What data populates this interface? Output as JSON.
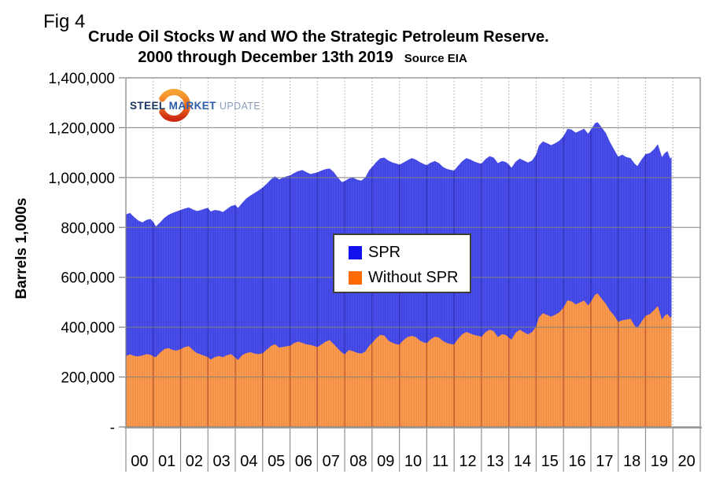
{
  "header": {
    "fig_label": "Fig 4",
    "title_line1": "Crude Oil Stocks W and WO the Strategic Petroleum Reserve.",
    "title_line2": "2000 through December 13th 2019",
    "source": "Source EIA"
  },
  "logo": {
    "word1": "STEEL",
    "word2": "MARKET",
    "word3": "UPDATE"
  },
  "chart_data": {
    "type": "area",
    "subtype": "stacked-weekly-bars",
    "title": "Crude Oil Stocks W and WO the Strategic Petroleum Reserve. 2000 through December 13th 2019",
    "source": "Source EIA",
    "ylabel": "Barrels 1,000s",
    "ylim": [
      0,
      1400000
    ],
    "y_ticks": [
      "1,400,000",
      "1,200,000",
      "1,000,000",
      "800,000",
      "600,000",
      "400,000",
      "200,000",
      "-"
    ],
    "x_ticks": [
      "00",
      "01",
      "02",
      "03",
      "04",
      "05",
      "06",
      "07",
      "08",
      "09",
      "10",
      "11",
      "12",
      "13",
      "14",
      "15",
      "16",
      "17",
      "18",
      "19",
      "20"
    ],
    "x_axis_years": [
      2000,
      2021
    ],
    "data_end_year": 2019.95,
    "grid": {
      "horizontal": "solid",
      "vertical": "dotted-yearly"
    },
    "legend_position": "center",
    "series": [
      {
        "name": "SPR",
        "legend_color": "#1212ee",
        "area_color": "#4e52ee",
        "area_stripe": "#3a3ed8",
        "meaning": "total stocks with SPR (top of blue)"
      },
      {
        "name": "Without SPR",
        "legend_color": "#ff6a05",
        "area_color": "#f9a25c",
        "area_stripe": "#ef8130",
        "meaning": "stocks excluding SPR (orange)"
      }
    ],
    "points_format": [
      "year",
      "total_with_spr_kbbl",
      "without_spr_kbbl"
    ],
    "points": [
      [
        2000.0,
        852000,
        284000
      ],
      [
        2000.15,
        858000,
        291000
      ],
      [
        2000.3,
        842000,
        285000
      ],
      [
        2000.45,
        828000,
        283000
      ],
      [
        2000.6,
        820000,
        286000
      ],
      [
        2000.75,
        830000,
        292000
      ],
      [
        2000.9,
        834000,
        289000
      ],
      [
        2001.0,
        822000,
        283000
      ],
      [
        2001.1,
        804000,
        280000
      ],
      [
        2001.25,
        820000,
        298000
      ],
      [
        2001.4,
        838000,
        312000
      ],
      [
        2001.55,
        850000,
        316000
      ],
      [
        2001.7,
        858000,
        309000
      ],
      [
        2001.85,
        864000,
        306000
      ],
      [
        2002.0,
        870000,
        312000
      ],
      [
        2002.15,
        876000,
        320000
      ],
      [
        2002.3,
        880000,
        324000
      ],
      [
        2002.45,
        872000,
        308000
      ],
      [
        2002.6,
        866000,
        296000
      ],
      [
        2002.75,
        870000,
        290000
      ],
      [
        2002.9,
        876000,
        284000
      ],
      [
        2003.0,
        878000,
        280000
      ],
      [
        2003.1,
        864000,
        270000
      ],
      [
        2003.25,
        870000,
        280000
      ],
      [
        2003.4,
        868000,
        284000
      ],
      [
        2003.55,
        862000,
        280000
      ],
      [
        2003.7,
        874000,
        288000
      ],
      [
        2003.85,
        886000,
        292000
      ],
      [
        2004.0,
        890000,
        278000
      ],
      [
        2004.1,
        878000,
        268000
      ],
      [
        2004.25,
        898000,
        288000
      ],
      [
        2004.4,
        916000,
        296000
      ],
      [
        2004.55,
        928000,
        300000
      ],
      [
        2004.7,
        938000,
        294000
      ],
      [
        2004.85,
        948000,
        292000
      ],
      [
        2005.0,
        960000,
        295000
      ],
      [
        2005.15,
        975000,
        310000
      ],
      [
        2005.3,
        992000,
        324000
      ],
      [
        2005.45,
        1005000,
        332000
      ],
      [
        2005.6,
        993000,
        318000
      ],
      [
        2005.75,
        1000000,
        321000
      ],
      [
        2005.9,
        1006000,
        324000
      ],
      [
        2006.0,
        1008000,
        325000
      ],
      [
        2006.15,
        1018000,
        336000
      ],
      [
        2006.3,
        1026000,
        342000
      ],
      [
        2006.45,
        1030000,
        337000
      ],
      [
        2006.6,
        1022000,
        331000
      ],
      [
        2006.75,
        1014000,
        329000
      ],
      [
        2006.9,
        1018000,
        324000
      ],
      [
        2007.0,
        1021000,
        320000
      ],
      [
        2007.15,
        1028000,
        330000
      ],
      [
        2007.3,
        1034000,
        342000
      ],
      [
        2007.45,
        1036000,
        348000
      ],
      [
        2007.6,
        1022000,
        332000
      ],
      [
        2007.75,
        1000000,
        314000
      ],
      [
        2007.9,
        982000,
        298000
      ],
      [
        2008.0,
        986000,
        291000
      ],
      [
        2008.15,
        996000,
        308000
      ],
      [
        2008.3,
        1000000,
        304000
      ],
      [
        2008.45,
        992000,
        297000
      ],
      [
        2008.6,
        988000,
        294000
      ],
      [
        2008.75,
        1000000,
        302000
      ],
      [
        2008.9,
        1030000,
        326000
      ],
      [
        2009.0,
        1042000,
        336000
      ],
      [
        2009.15,
        1062000,
        355000
      ],
      [
        2009.3,
        1077000,
        369000
      ],
      [
        2009.45,
        1080000,
        366000
      ],
      [
        2009.6,
        1068000,
        346000
      ],
      [
        2009.75,
        1060000,
        337000
      ],
      [
        2009.9,
        1056000,
        331000
      ],
      [
        2010.0,
        1052000,
        330000
      ],
      [
        2010.15,
        1060000,
        348000
      ],
      [
        2010.3,
        1070000,
        360000
      ],
      [
        2010.45,
        1078000,
        365000
      ],
      [
        2010.6,
        1072000,
        360000
      ],
      [
        2010.75,
        1062000,
        346000
      ],
      [
        2010.9,
        1054000,
        338000
      ],
      [
        2011.0,
        1050000,
        336000
      ],
      [
        2011.15,
        1060000,
        352000
      ],
      [
        2011.3,
        1066000,
        362000
      ],
      [
        2011.45,
        1058000,
        358000
      ],
      [
        2011.6,
        1042000,
        344000
      ],
      [
        2011.75,
        1034000,
        336000
      ],
      [
        2011.9,
        1030000,
        332000
      ],
      [
        2012.0,
        1028000,
        331000
      ],
      [
        2012.15,
        1048000,
        354000
      ],
      [
        2012.3,
        1066000,
        372000
      ],
      [
        2012.45,
        1078000,
        381000
      ],
      [
        2012.6,
        1072000,
        374000
      ],
      [
        2012.75,
        1064000,
        368000
      ],
      [
        2012.9,
        1058000,
        365000
      ],
      [
        2013.0,
        1056000,
        361000
      ],
      [
        2013.15,
        1074000,
        380000
      ],
      [
        2013.3,
        1086000,
        390000
      ],
      [
        2013.45,
        1080000,
        384000
      ],
      [
        2013.6,
        1058000,
        360000
      ],
      [
        2013.75,
        1066000,
        372000
      ],
      [
        2013.9,
        1062000,
        368000
      ],
      [
        2014.0,
        1052000,
        358000
      ],
      [
        2014.1,
        1040000,
        350000
      ],
      [
        2014.25,
        1064000,
        378000
      ],
      [
        2014.4,
        1076000,
        390000
      ],
      [
        2014.55,
        1068000,
        380000
      ],
      [
        2014.7,
        1060000,
        371000
      ],
      [
        2014.85,
        1068000,
        380000
      ],
      [
        2015.0,
        1092000,
        403000
      ],
      [
        2015.1,
        1128000,
        440000
      ],
      [
        2015.25,
        1145000,
        456000
      ],
      [
        2015.4,
        1138000,
        449000
      ],
      [
        2015.55,
        1130000,
        442000
      ],
      [
        2015.7,
        1138000,
        450000
      ],
      [
        2015.85,
        1148000,
        460000
      ],
      [
        2016.0,
        1166000,
        479000
      ],
      [
        2016.15,
        1196000,
        508000
      ],
      [
        2016.3,
        1192000,
        503000
      ],
      [
        2016.45,
        1180000,
        491000
      ],
      [
        2016.6,
        1188000,
        499000
      ],
      [
        2016.75,
        1196000,
        507000
      ],
      [
        2016.9,
        1176000,
        487000
      ],
      [
        2017.0,
        1192000,
        502000
      ],
      [
        2017.15,
        1218000,
        530000
      ],
      [
        2017.25,
        1222000,
        535000
      ],
      [
        2017.4,
        1200000,
        513000
      ],
      [
        2017.55,
        1178000,
        493000
      ],
      [
        2017.7,
        1142000,
        466000
      ],
      [
        2017.85,
        1112000,
        447000
      ],
      [
        2018.0,
        1084000,
        421000
      ],
      [
        2018.15,
        1092000,
        428000
      ],
      [
        2018.3,
        1082000,
        430000
      ],
      [
        2018.45,
        1078000,
        434000
      ],
      [
        2018.6,
        1056000,
        406000
      ],
      [
        2018.7,
        1046000,
        396000
      ],
      [
        2018.85,
        1072000,
        422000
      ],
      [
        2019.0,
        1094000,
        446000
      ],
      [
        2019.15,
        1098000,
        452000
      ],
      [
        2019.3,
        1112000,
        467000
      ],
      [
        2019.45,
        1134000,
        485000
      ],
      [
        2019.6,
        1082000,
        430000
      ],
      [
        2019.7,
        1098000,
        446000
      ],
      [
        2019.8,
        1106000,
        453000
      ],
      [
        2019.9,
        1076000,
        438000
      ],
      [
        2019.95,
        1082000,
        443000
      ]
    ]
  }
}
